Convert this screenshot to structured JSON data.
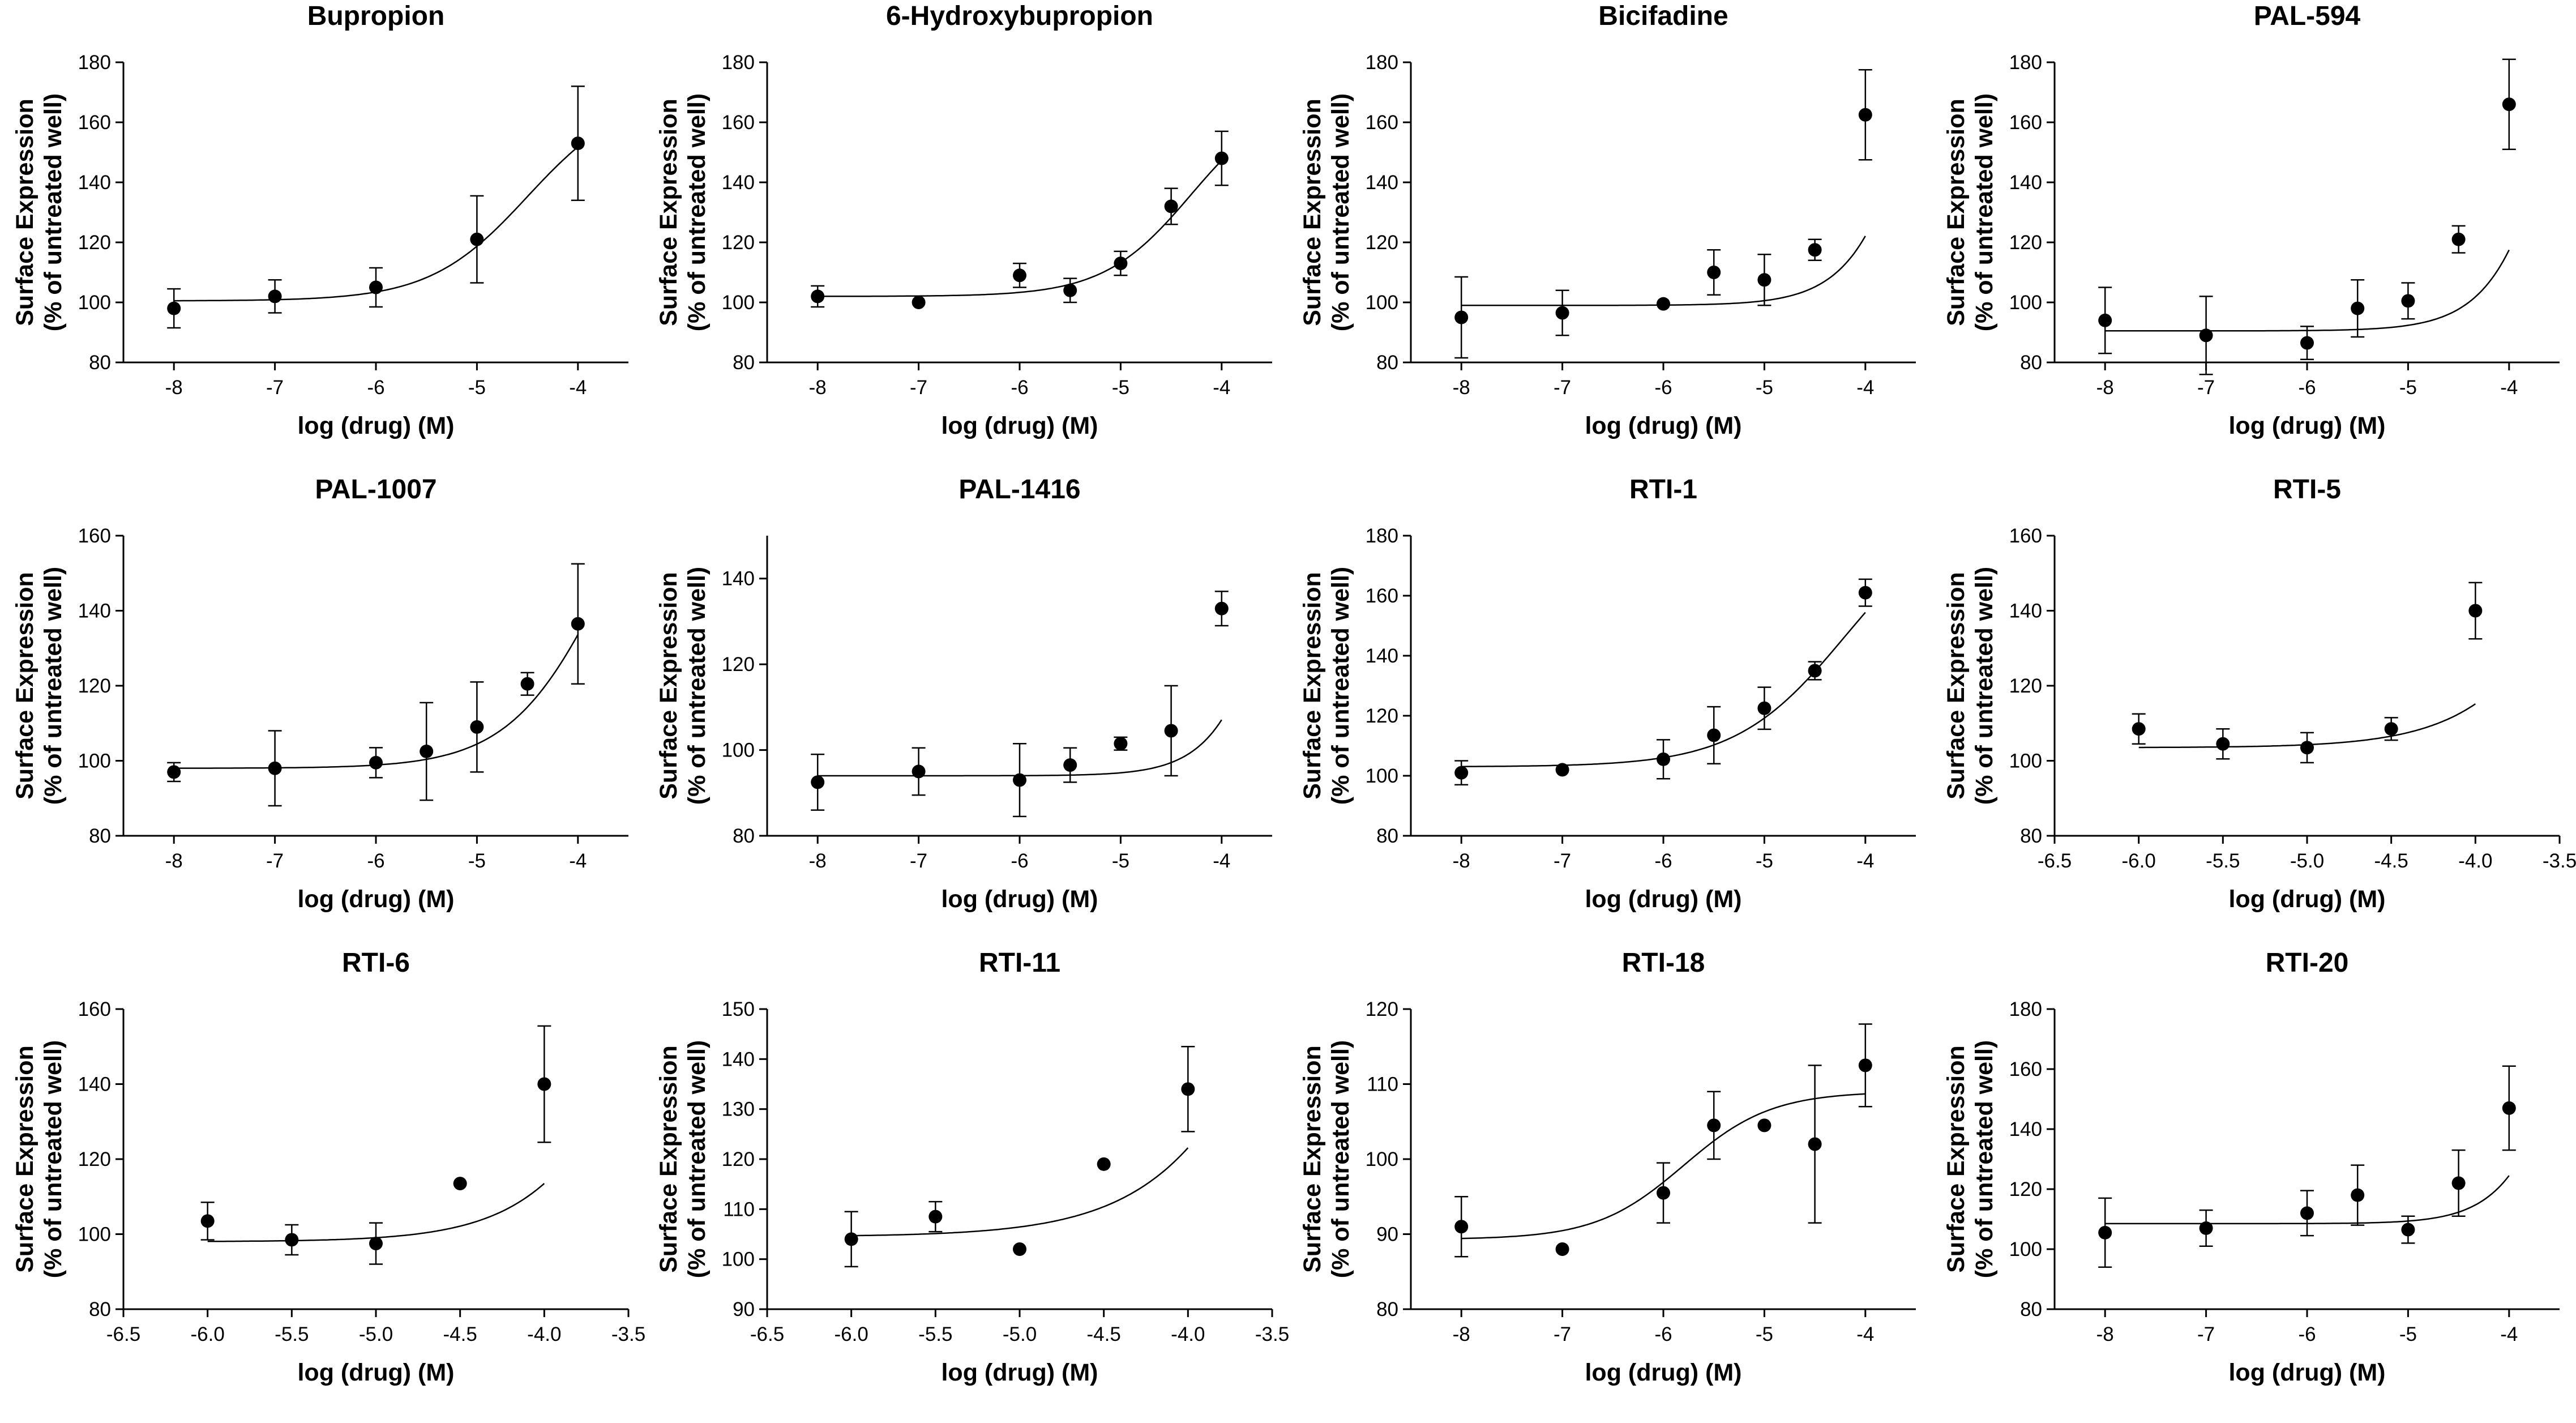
{
  "chart_data": [
    {
      "type": "scatter",
      "title": "Bupropion",
      "xlabel": "log (drug) (M)",
      "ylabel": [
        "Surface Expression",
        "(% of untreated well)"
      ],
      "xlim": [
        -8.5,
        -3.5
      ],
      "xticks": [
        -8,
        -7,
        -6,
        -5,
        -4
      ],
      "xticklabels": [
        "-8",
        "-7",
        "-6",
        "-5",
        "-4"
      ],
      "ylim": [
        80,
        180
      ],
      "yticks": [
        80,
        100,
        120,
        140,
        160,
        180
      ],
      "yticklabels": [
        "80",
        "100",
        "120",
        "140",
        "160",
        "180"
      ],
      "points": [
        {
          "x": -8,
          "y": 98,
          "err": 6.5
        },
        {
          "x": -7,
          "y": 102,
          "err": 5.5
        },
        {
          "x": -6,
          "y": 105,
          "err": 6.5
        },
        {
          "x": -5,
          "y": 121,
          "err": 14.5
        },
        {
          "x": -4,
          "y": 153,
          "err": 19
        }
      ],
      "fit": {
        "bottom": 100.5,
        "top": 170,
        "logec50": -4.5,
        "hill": 0.9
      }
    },
    {
      "type": "scatter",
      "title": "6-Hydroxybupropion",
      "xlabel": "log (drug) (M)",
      "ylabel": [
        "Surface Expression",
        "(% of untreated well)"
      ],
      "xlim": [
        -8.5,
        -3.5
      ],
      "xticks": [
        -8,
        -7,
        -6,
        -5,
        -4
      ],
      "xticklabels": [
        "-8",
        "-7",
        "-6",
        "-5",
        "-4"
      ],
      "ylim": [
        80,
        180
      ],
      "yticks": [
        80,
        100,
        120,
        140,
        160,
        180
      ],
      "yticklabels": [
        "80",
        "100",
        "120",
        "140",
        "160",
        "180"
      ],
      "points": [
        {
          "x": -8,
          "y": 102,
          "err": 3.5
        },
        {
          "x": -7,
          "y": 100,
          "err": 1
        },
        {
          "x": -6,
          "y": 109,
          "err": 4
        },
        {
          "x": -5.5,
          "y": 104,
          "err": 4
        },
        {
          "x": -5,
          "y": 113,
          "err": 4
        },
        {
          "x": -4.5,
          "y": 132,
          "err": 6
        },
        {
          "x": -4,
          "y": 148,
          "err": 9
        }
      ],
      "fit": {
        "bottom": 102,
        "top": 170,
        "logec50": -4.3,
        "hill": 1.0
      }
    },
    {
      "type": "scatter",
      "title": "Bicifadine",
      "xlabel": "log (drug) (M)",
      "ylabel": [
        "Surface Expression",
        "(% of untreated well)"
      ],
      "xlim": [
        -8.5,
        -3.5
      ],
      "xticks": [
        -8,
        -7,
        -6,
        -5,
        -4
      ],
      "xticklabels": [
        "-8",
        "-7",
        "-6",
        "-5",
        "-4"
      ],
      "ylim": [
        80,
        180
      ],
      "yticks": [
        80,
        100,
        120,
        140,
        160,
        180
      ],
      "yticklabels": [
        "80",
        "100",
        "120",
        "140",
        "160",
        "180"
      ],
      "points": [
        {
          "x": -8,
          "y": 95,
          "err": 13.5
        },
        {
          "x": -7,
          "y": 96.5,
          "err": 7.5
        },
        {
          "x": -6,
          "y": 99.5,
          "err": 1
        },
        {
          "x": -5.5,
          "y": 110,
          "err": 7.5
        },
        {
          "x": -5,
          "y": 107.5,
          "err": 8.5
        },
        {
          "x": -4.5,
          "y": 117.5,
          "err": 3.5
        },
        {
          "x": -4,
          "y": 162.5,
          "err": 15
        }
      ],
      "fit": {
        "bottom": 99,
        "top": 400,
        "logec50": -3.1,
        "hill": 1.2
      }
    },
    {
      "type": "scatter",
      "title": "PAL-594",
      "xlabel": "log (drug) (M)",
      "ylabel": [
        "Surface Expression",
        "(% of untreated well)"
      ],
      "xlim": [
        -8.5,
        -3.5
      ],
      "xticks": [
        -8,
        -7,
        -6,
        -5,
        -4
      ],
      "xticklabels": [
        "-8",
        "-7",
        "-6",
        "-5",
        "-4"
      ],
      "ylim": [
        80,
        180
      ],
      "yticks": [
        80,
        100,
        120,
        140,
        160,
        180
      ],
      "yticklabels": [
        "80",
        "100",
        "120",
        "140",
        "160",
        "180"
      ],
      "points": [
        {
          "x": -8,
          "y": 94,
          "err": 11
        },
        {
          "x": -7,
          "y": 89,
          "err": 13
        },
        {
          "x": -6,
          "y": 86.5,
          "err": 5.5
        },
        {
          "x": -5.5,
          "y": 98,
          "err": 9.5
        },
        {
          "x": -5,
          "y": 100.5,
          "err": 6
        },
        {
          "x": -4.5,
          "y": 121,
          "err": 4.5
        },
        {
          "x": -4,
          "y": 166,
          "err": 15
        }
      ],
      "fit": {
        "bottom": 90.5,
        "top": 400,
        "logec50": -3.15,
        "hill": 1.2
      }
    },
    {
      "type": "scatter",
      "title": "PAL-1007",
      "xlabel": "log (drug) (M)",
      "ylabel": [
        "Surface Expression",
        "(% of untreated well)"
      ],
      "xlim": [
        -8.5,
        -3.5
      ],
      "xticks": [
        -8,
        -7,
        -6,
        -5,
        -4
      ],
      "xticklabels": [
        "-8",
        "-7",
        "-6",
        "-5",
        "-4"
      ],
      "ylim": [
        80,
        160
      ],
      "yticks": [
        80,
        100,
        120,
        140,
        160
      ],
      "yticklabels": [
        "80",
        "100",
        "120",
        "140",
        "160"
      ],
      "points": [
        {
          "x": -8,
          "y": 97,
          "err": 2.5
        },
        {
          "x": -7,
          "y": 98,
          "err": 10
        },
        {
          "x": -6,
          "y": 99.5,
          "err": 4
        },
        {
          "x": -5.5,
          "y": 102.5,
          "err": 13
        },
        {
          "x": -5,
          "y": 109,
          "err": 12
        },
        {
          "x": -4.5,
          "y": 120.5,
          "err": 3
        },
        {
          "x": -4,
          "y": 136.5,
          "err": 16
        }
      ],
      "fit": {
        "bottom": 98,
        "top": 200,
        "logec50": -3.7,
        "hill": 0.9
      }
    },
    {
      "type": "scatter",
      "title": "PAL-1416",
      "xlabel": "log (drug) (M)",
      "ylabel": [
        "Surface Expression",
        "(% of untreated well)"
      ],
      "xlim": [
        -8.5,
        -3.5
      ],
      "xticks": [
        -8,
        -7,
        -6,
        -5,
        -4
      ],
      "xticklabels": [
        "-8",
        "-7",
        "-6",
        "-5",
        "-4"
      ],
      "ylim": [
        80,
        150
      ],
      "yticks": [
        80,
        100,
        120,
        140
      ],
      "yticklabels": [
        "80",
        "100",
        "120",
        "140"
      ],
      "points": [
        {
          "x": -8,
          "y": 92.5,
          "err": 6.5
        },
        {
          "x": -7,
          "y": 95,
          "err": 5.5
        },
        {
          "x": -6,
          "y": 93,
          "err": 8.5
        },
        {
          "x": -5.5,
          "y": 96.5,
          "err": 4
        },
        {
          "x": -5,
          "y": 101.5,
          "err": 1.5
        },
        {
          "x": -4.5,
          "y": 104.5,
          "err": 10.5
        },
        {
          "x": -4,
          "y": 133,
          "err": 4
        }
      ],
      "fit": {
        "bottom": 94,
        "top": 300,
        "logec50": -3.1,
        "hill": 1.3
      }
    },
    {
      "type": "scatter",
      "title": "RTI-1",
      "xlabel": "log (drug) (M)",
      "ylabel": [
        "Surface Expression",
        "(% of untreated well)"
      ],
      "xlim": [
        -8.5,
        -3.5
      ],
      "xticks": [
        -8,
        -7,
        -6,
        -5,
        -4
      ],
      "xticklabels": [
        "-8",
        "-7",
        "-6",
        "-5",
        "-4"
      ],
      "ylim": [
        80,
        180
      ],
      "yticks": [
        80,
        100,
        120,
        140,
        160,
        180
      ],
      "yticklabels": [
        "80",
        "100",
        "120",
        "140",
        "160",
        "180"
      ],
      "points": [
        {
          "x": -8,
          "y": 101,
          "err": 4
        },
        {
          "x": -7,
          "y": 102,
          "err": 1
        },
        {
          "x": -6,
          "y": 105.5,
          "err": 6.5
        },
        {
          "x": -5.5,
          "y": 113.5,
          "err": 9.5
        },
        {
          "x": -5,
          "y": 122.5,
          "err": 7
        },
        {
          "x": -4.5,
          "y": 135,
          "err": 3
        },
        {
          "x": -4,
          "y": 161,
          "err": 4.5
        }
      ],
      "fit": {
        "bottom": 103,
        "top": 190,
        "logec50": -4.2,
        "hill": 0.8
      }
    },
    {
      "type": "scatter",
      "title": "RTI-5",
      "xlabel": "log (drug) (M)",
      "ylabel": [
        "Surface Expression",
        "(% of untreated well)"
      ],
      "xlim": [
        -6.5,
        -3.5
      ],
      "xticks": [
        -6.5,
        -6.0,
        -5.5,
        -5.0,
        -4.5,
        -4.0,
        -3.5
      ],
      "xticklabels": [
        "-6.5",
        "-6.0",
        "-5.5",
        "-5.0",
        "-4.5",
        "-4.0",
        "-3.5"
      ],
      "ylim": [
        80,
        160
      ],
      "yticks": [
        80,
        100,
        120,
        140,
        160
      ],
      "yticklabels": [
        "80",
        "100",
        "120",
        "140",
        "160"
      ],
      "points": [
        {
          "x": -6,
          "y": 108.5,
          "err": 4
        },
        {
          "x": -5.5,
          "y": 104.5,
          "err": 4
        },
        {
          "x": -5,
          "y": 103.5,
          "err": 4
        },
        {
          "x": -4.5,
          "y": 108.5,
          "err": 3
        },
        {
          "x": -4,
          "y": 140,
          "err": 7.5
        }
      ],
      "fit": {
        "bottom": 103.5,
        "top": 300,
        "logec50": -3.0,
        "hill": 1.2
      }
    },
    {
      "type": "scatter",
      "title": "RTI-6",
      "xlabel": "log (drug) (M)",
      "ylabel": [
        "Surface Expression",
        "(% of untreated well)"
      ],
      "xlim": [
        -6.5,
        -3.5
      ],
      "xticks": [
        -6.5,
        -6.0,
        -5.5,
        -5.0,
        -4.5,
        -4.0,
        -3.5
      ],
      "xticklabels": [
        "-6.5",
        "-6.0",
        "-5.5",
        "-5.0",
        "-4.5",
        "-4.0",
        "-3.5"
      ],
      "ylim": [
        80,
        160
      ],
      "yticks": [
        80,
        100,
        120,
        140,
        160
      ],
      "yticklabels": [
        "80",
        "100",
        "120",
        "140",
        "160"
      ],
      "points": [
        {
          "x": -6,
          "y": 103.5,
          "err": 5
        },
        {
          "x": -5.5,
          "y": 98.5,
          "err": 4
        },
        {
          "x": -5,
          "y": 97.5,
          "err": 5.5
        },
        {
          "x": -4.5,
          "y": 113.5,
          "err": 1
        },
        {
          "x": -4,
          "y": 140,
          "err": 15.5
        }
      ],
      "fit": {
        "bottom": 98,
        "top": 300,
        "logec50": -3.1,
        "hill": 1.2
      }
    },
    {
      "type": "scatter",
      "title": "RTI-11",
      "xlabel": "log (drug) (M)",
      "ylabel": [
        "Surface Expression",
        "(% of untreated well)"
      ],
      "xlim": [
        -6.5,
        -3.5
      ],
      "xticks": [
        -6.5,
        -6.0,
        -5.5,
        -5.0,
        -4.5,
        -4.0,
        -3.5
      ],
      "xticklabels": [
        "-6.5",
        "-6.0",
        "-5.5",
        "-5.0",
        "-4.5",
        "-4.0",
        "-3.5"
      ],
      "ylim": [
        90,
        150
      ],
      "yticks": [
        90,
        100,
        110,
        120,
        130,
        140,
        150
      ],
      "yticklabels": [
        "90",
        "100",
        "110",
        "120",
        "130",
        "140",
        "150"
      ],
      "points": [
        {
          "x": -6,
          "y": 104,
          "err": 5.5
        },
        {
          "x": -5.5,
          "y": 108.5,
          "err": 3
        },
        {
          "x": -5,
          "y": 102,
          "err": 0.5
        },
        {
          "x": -4.5,
          "y": 119,
          "err": 0.5
        },
        {
          "x": -4,
          "y": 134,
          "err": 8.5
        }
      ],
      "fit": {
        "bottom": 104.5,
        "top": 300,
        "logec50": -3.0,
        "hill": 1.0
      }
    },
    {
      "type": "scatter",
      "title": "RTI-18",
      "xlabel": "log (drug) (M)",
      "ylabel": [
        "Surface Expression",
        "(% of untreated well)"
      ],
      "xlim": [
        -8.5,
        -3.5
      ],
      "xticks": [
        -8,
        -7,
        -6,
        -5,
        -4
      ],
      "xticklabels": [
        "-8",
        "-7",
        "-6",
        "-5",
        "-4"
      ],
      "ylim": [
        80,
        120
      ],
      "yticks": [
        80,
        90,
        100,
        110,
        120
      ],
      "yticklabels": [
        "80",
        "90",
        "100",
        "110",
        "120"
      ],
      "points": [
        {
          "x": -8,
          "y": 91,
          "err": 4
        },
        {
          "x": -7,
          "y": 88,
          "err": 0.5
        },
        {
          "x": -6,
          "y": 95.5,
          "err": 4
        },
        {
          "x": -5.5,
          "y": 104.5,
          "err": 4.5
        },
        {
          "x": -5,
          "y": 104.5,
          "err": 0.5
        },
        {
          "x": -4.5,
          "y": 102,
          "err": 10.5
        },
        {
          "x": -4,
          "y": 112.5,
          "err": 5.5
        }
      ],
      "fit": {
        "bottom": 89.3,
        "top": 109,
        "logec50": -5.8,
        "hill": 1.0
      }
    },
    {
      "type": "scatter",
      "title": "RTI-20",
      "xlabel": "log (drug) (M)",
      "ylabel": [
        "Surface Expression",
        "(% of untreated well)"
      ],
      "xlim": [
        -8.5,
        -3.5
      ],
      "xticks": [
        -8,
        -7,
        -6,
        -5,
        -4
      ],
      "xticklabels": [
        "-8",
        "-7",
        "-6",
        "-5",
        "-4"
      ],
      "ylim": [
        80,
        180
      ],
      "yticks": [
        80,
        100,
        120,
        140,
        160,
        180
      ],
      "yticklabels": [
        "80",
        "100",
        "120",
        "140",
        "160",
        "180"
      ],
      "points": [
        {
          "x": -8,
          "y": 105.5,
          "err": 11.5
        },
        {
          "x": -7,
          "y": 107,
          "err": 6
        },
        {
          "x": -6,
          "y": 112,
          "err": 7.5
        },
        {
          "x": -5.5,
          "y": 118,
          "err": 10
        },
        {
          "x": -5,
          "y": 106.5,
          "err": 4.5
        },
        {
          "x": -4.5,
          "y": 122,
          "err": 11
        },
        {
          "x": -4,
          "y": 147,
          "err": 14
        }
      ],
      "fit": {
        "bottom": 108.5,
        "top": 300,
        "logec50": -3.2,
        "hill": 1.3
      }
    }
  ]
}
